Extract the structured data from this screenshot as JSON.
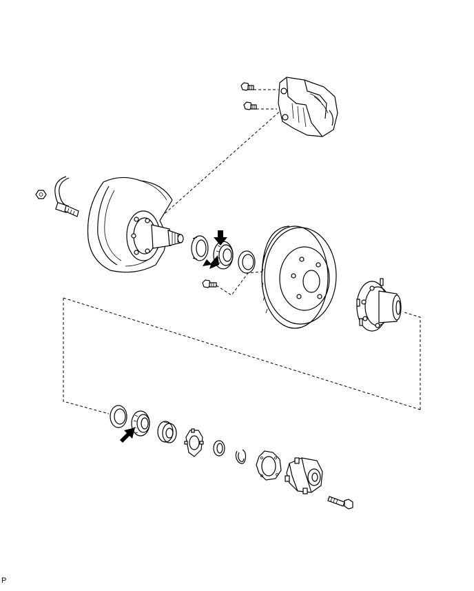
{
  "figure": {
    "corner_label": "P",
    "parts": [
      "caliper-bolt",
      "caliper",
      "abs-speed-sensor",
      "sensor-nut",
      "dust-cover",
      "steering-knuckle",
      "oil-seal",
      "inner-bearing",
      "inner-bearing-race",
      "disc-bolt",
      "brake-disc",
      "axle-hub",
      "outer-bearing-race",
      "outer-bearing",
      "adjusting-nut",
      "lock-nut",
      "lock-washer",
      "snap-ring",
      "hub-flange-gasket",
      "free-wheel-hub",
      "hub-bolt"
    ],
    "indicator_arrows": 3
  }
}
